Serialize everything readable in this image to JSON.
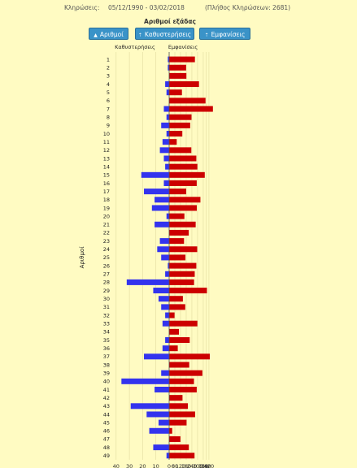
{
  "header": {
    "draws_label": "Κληρώσεις:",
    "date_range": "05/12/1990 - 03/02/2018",
    "total": "(Πλήθος Κληρώσεων: 2681)"
  },
  "sort": {
    "title": "Αριθμοί εξάδας",
    "buttons": [
      {
        "label": "Αριθμοί",
        "icon": "triangle-up-icon"
      },
      {
        "label": "Καθυστερήσεις",
        "icon": "sort-up-icon"
      },
      {
        "label": "Εμφανίσεις",
        "icon": "sort-up-icon"
      }
    ]
  },
  "colors": {
    "delays": "#3333ee",
    "appearances": "#cc0000",
    "background": "#fffbc2"
  },
  "chart_data": {
    "type": "bar",
    "orientation": "horizontal",
    "title": "",
    "ylabel": "Αριθμοί",
    "legend": [
      "Καθυστερήσεις",
      "Εμφανίσεις"
    ],
    "xlim_delays": [
      0,
      45
    ],
    "xlim_appearances": [
      0,
      450
    ],
    "tick_labels_delays": [
      "40",
      "30",
      "20",
      "10",
      "0"
    ],
    "tick_labels_appearances": [
      "0",
      "60",
      "120",
      "180",
      "240",
      "300",
      "360",
      "390",
      "420"
    ],
    "categories": [
      "1",
      "2",
      "3",
      "4",
      "5",
      "6",
      "7",
      "8",
      "9",
      "10",
      "11",
      "12",
      "13",
      "14",
      "15",
      "16",
      "17",
      "18",
      "19",
      "20",
      "21",
      "22",
      "23",
      "24",
      "25",
      "26",
      "27",
      "28",
      "29",
      "30",
      "31",
      "32",
      "33",
      "34",
      "35",
      "36",
      "37",
      "38",
      "39",
      "40",
      "41",
      "42",
      "43",
      "44",
      "45",
      "46",
      "47",
      "48",
      "49"
    ],
    "series": [
      {
        "name": "Καθυστερήσεις",
        "values": [
          1,
          1,
          0,
          3,
          2,
          0,
          4,
          2,
          6,
          2,
          5,
          7,
          4,
          3,
          21,
          4,
          19,
          11,
          13,
          2,
          11,
          0,
          7,
          9,
          6,
          1,
          3,
          32,
          12,
          8,
          6,
          3,
          5,
          0,
          3,
          5,
          19,
          0,
          6,
          36,
          11,
          0,
          29,
          17,
          8,
          15,
          0,
          12,
          2
        ]
      },
      {
        "name": "Εμφανίσεις",
        "values": [
          272,
          179,
          182,
          315,
          135,
          384,
          462,
          236,
          222,
          139,
          80,
          234,
          287,
          298,
          376,
          291,
          180,
          330,
          292,
          161,
          280,
          207,
          157,
          296,
          172,
          287,
          270,
          263,
          399,
          145,
          170,
          57,
          298,
          103,
          217,
          91,
          429,
          212,
          351,
          262,
          291,
          141,
          198,
          274,
          184,
          32,
          119,
          208,
          268
        ]
      }
    ]
  }
}
